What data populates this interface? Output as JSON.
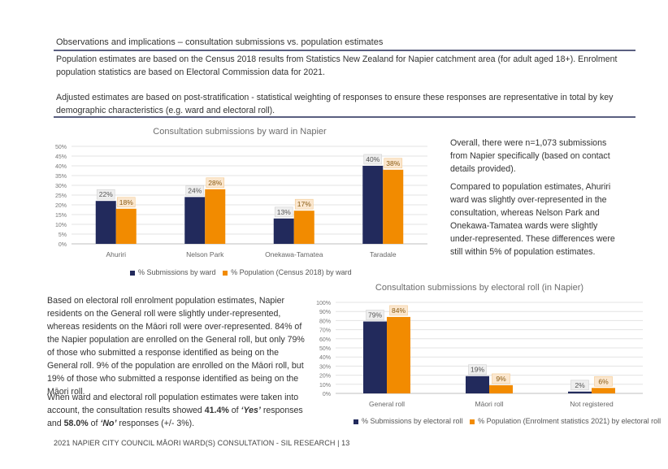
{
  "header": {
    "title": "Observations and implications – consultation submissions vs. population estimates",
    "para1": "Population estimates are based on the Census 2018 results from Statistics New Zealand for Napier catchment area (for adult aged 18+). Enrolment population statistics are based on Electoral Commission data for 2021.",
    "para2": "Adjusted estimates are based on post-stratification - statistical weighting of responses to ensure these responses are representative in total by key demographic characteristics (e.g. ward and electoral roll)."
  },
  "right_text": {
    "p1": "Overall, there were n=1,073 submissions from Napier specifically (based on contact details provided).",
    "p2": "Compared to population estimates, Ahuriri ward was slightly over-represented in the consultation, whereas Nelson Park and Onekawa-Tamatea wards were slightly under-represented. These differences were still within 5% of population estimates."
  },
  "left_text": {
    "p1": "Based on electoral roll enrolment population estimates, Napier residents on the General roll were slightly under-represented, whereas residents on the Māori roll were over-represented. 84% of the Napier population are enrolled on the General roll, but only 79% of those who submitted a response identified as being on the General roll. 9% of the population are enrolled on the Māori roll, but 19% of those who submitted a response identified as being on the Māori roll.",
    "p2_a": "When ward and electoral roll population estimates were taken into account, the consultation results showed ",
    "p2_b": "41.4%",
    "p2_c": " of ",
    "p2_d": "‘Yes’",
    "p2_e": " responses and ",
    "p2_f": "58.0%",
    "p2_g": " of ",
    "p2_h": "‘No’",
    "p2_i": " responses (+/- 3%)."
  },
  "footer": "2021 NAPIER CITY COUNCIL MĀORI WARD(S) CONSULTATION - SIL RESEARCH | 13",
  "colors": {
    "navy": "#222a5c",
    "orange": "#f28b00",
    "rule": "#5a5f80"
  },
  "chart_data": [
    {
      "type": "bar",
      "title": "Consultation submissions by ward in Napier",
      "categories": [
        "Ahuriri",
        "Nelson Park",
        "Onekawa-Tamatea",
        "Taradale"
      ],
      "series": [
        {
          "name": "% Submissions by ward",
          "values": [
            22,
            24,
            13,
            40
          ],
          "labels": [
            "22%",
            "24%",
            "13%",
            "40%"
          ],
          "color": "#222a5c"
        },
        {
          "name": "% Population (Census 2018) by ward",
          "values": [
            18,
            28,
            17,
            38
          ],
          "labels": [
            "18%",
            "28%",
            "17%",
            "38%"
          ],
          "color": "#f28b00"
        }
      ],
      "ylim": [
        0,
        50
      ],
      "yticks": [
        0,
        5,
        10,
        15,
        20,
        25,
        30,
        35,
        40,
        45,
        50
      ],
      "ytick_labels": [
        "0%",
        "5%",
        "10%",
        "15%",
        "20%",
        "25%",
        "30%",
        "35%",
        "40%",
        "45%",
        "50%"
      ],
      "grid": true,
      "legend": "bottom"
    },
    {
      "type": "bar",
      "title": "Consultation submissions by electoral roll (in Napier)",
      "categories": [
        "General roll",
        "Māori roll",
        "Not registered"
      ],
      "series": [
        {
          "name": "% Submissions by electoral roll",
          "values": [
            79,
            19,
            2
          ],
          "labels": [
            "79%",
            "19%",
            "2%"
          ],
          "color": "#222a5c"
        },
        {
          "name": "% Population (Enrolment statistics 2021) by electoral roll",
          "values": [
            84,
            9,
            6
          ],
          "labels": [
            "84%",
            "9%",
            "6%"
          ],
          "color": "#f28b00"
        }
      ],
      "ylim": [
        0,
        100
      ],
      "yticks": [
        0,
        10,
        20,
        30,
        40,
        50,
        60,
        70,
        80,
        90,
        100
      ],
      "ytick_labels": [
        "0%",
        "10%",
        "20%",
        "30%",
        "40%",
        "50%",
        "60%",
        "70%",
        "80%",
        "90%",
        "100%"
      ],
      "grid": true,
      "legend": "bottom"
    }
  ]
}
